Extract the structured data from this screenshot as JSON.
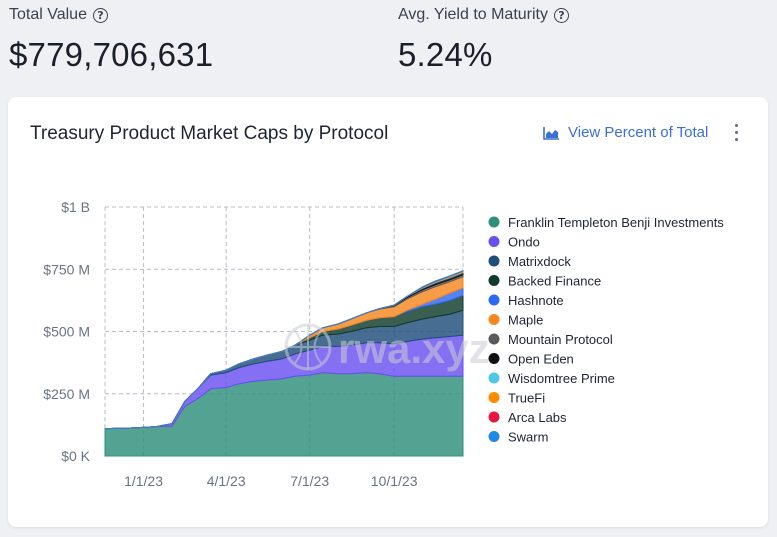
{
  "metrics": {
    "total_label": "Total Value",
    "total_value": "$779,706,631",
    "yield_label": "Avg. Yield to Maturity",
    "yield_value": "5.24%"
  },
  "card": {
    "title": "Treasury Product Market Caps by Protocol",
    "view_percent_label": "View Percent of Total",
    "watermark": "rwa.xyz"
  },
  "colors": {
    "accent": "#3b6fd4",
    "card_bg": "#ffffff",
    "page_bg": "#eef0f4"
  },
  "chart_data": {
    "type": "area",
    "stacked": true,
    "title": "Treasury Product Market Caps by Protocol",
    "x_ticks": [
      "1/1/23",
      "4/1/23",
      "7/1/23",
      "10/1/23"
    ],
    "y_ticks": [
      "$0 K",
      "$250 M",
      "$500 M",
      "$750 M",
      "$1 B"
    ],
    "ylim": [
      0,
      1000
    ],
    "y_unit": "M USD",
    "grid": true,
    "legend_position": "right",
    "x_dates": [
      "2022-11-20",
      "2022-12-15",
      "2023-01-01",
      "2023-01-15",
      "2023-02-01",
      "2023-02-15",
      "2023-03-01",
      "2023-03-15",
      "2023-04-01",
      "2023-04-15",
      "2023-05-01",
      "2023-05-15",
      "2023-06-01",
      "2023-06-15",
      "2023-07-01",
      "2023-07-15",
      "2023-08-01",
      "2023-08-15",
      "2023-09-01",
      "2023-09-15",
      "2023-10-01",
      "2023-10-15",
      "2023-11-01",
      "2023-11-15",
      "2023-12-01",
      "2023-12-15"
    ],
    "series": [
      {
        "name": "Franklin Templeton Benji Investments",
        "color": "#2e8f7a",
        "values": [
          110,
          112,
          115,
          118,
          120,
          200,
          230,
          270,
          275,
          290,
          300,
          305,
          310,
          320,
          325,
          335,
          330,
          330,
          335,
          330,
          320,
          320,
          320,
          320,
          320,
          320
        ]
      },
      {
        "name": "Ondo",
        "color": "#6a4ff0",
        "values": [
          0,
          0,
          0,
          0,
          10,
          20,
          40,
          55,
          60,
          65,
          70,
          75,
          80,
          90,
          100,
          105,
          110,
          115,
          120,
          125,
          130,
          140,
          150,
          155,
          160,
          165
        ]
      },
      {
        "name": "Matrixdock",
        "color": "#1f4e7a",
        "values": [
          0,
          0,
          0,
          0,
          0,
          0,
          0,
          5,
          10,
          15,
          20,
          25,
          30,
          35,
          40,
          45,
          50,
          55,
          60,
          65,
          70,
          75,
          80,
          85,
          90,
          100
        ]
      },
      {
        "name": "Backed Finance",
        "color": "#0f3b2a",
        "values": [
          0,
          0,
          0,
          0,
          0,
          0,
          0,
          0,
          0,
          0,
          0,
          0,
          0,
          0,
          10,
          15,
          20,
          25,
          30,
          35,
          40,
          45,
          50,
          50,
          55,
          60
        ]
      },
      {
        "name": "Hashnote",
        "color": "#2f68f0",
        "values": [
          0,
          0,
          0,
          0,
          0,
          0,
          0,
          0,
          0,
          0,
          0,
          0,
          0,
          0,
          0,
          0,
          0,
          0,
          0,
          0,
          0,
          5,
          10,
          20,
          30,
          30
        ]
      },
      {
        "name": "Maple",
        "color": "#f5871f",
        "values": [
          0,
          0,
          0,
          0,
          0,
          0,
          0,
          0,
          0,
          0,
          0,
          0,
          0,
          0,
          10,
          15,
          20,
          25,
          30,
          35,
          40,
          45,
          50,
          50,
          45,
          45
        ]
      },
      {
        "name": "Mountain Protocol",
        "color": "#5a5a5a",
        "values": [
          0,
          0,
          0,
          0,
          0,
          0,
          0,
          0,
          0,
          0,
          0,
          0,
          0,
          0,
          0,
          0,
          0,
          0,
          0,
          2,
          4,
          6,
          8,
          8,
          8,
          8
        ]
      },
      {
        "name": "Open Eden",
        "color": "#111111",
        "values": [
          0,
          0,
          0,
          0,
          0,
          0,
          0,
          0,
          0,
          0,
          0,
          0,
          0,
          0,
          0,
          0,
          0,
          0,
          0,
          0,
          2,
          4,
          6,
          8,
          8,
          8
        ]
      },
      {
        "name": "Wisdomtree Prime",
        "color": "#4fc8e8",
        "values": [
          0,
          0,
          0,
          0,
          0,
          0,
          0,
          0,
          0,
          0,
          0,
          0,
          0,
          0,
          0,
          0,
          0,
          0,
          0,
          0,
          0,
          0,
          2,
          3,
          3,
          3
        ]
      },
      {
        "name": "TrueFi",
        "color": "#ff8a00",
        "values": [
          0,
          0,
          0,
          0,
          0,
          0,
          0,
          0,
          0,
          0,
          0,
          0,
          0,
          0,
          0,
          0,
          0,
          0,
          0,
          0,
          0,
          0,
          2,
          2,
          3,
          3
        ]
      },
      {
        "name": "Arca Labs",
        "color": "#e8173f",
        "values": [
          0,
          0,
          0,
          0,
          0,
          0,
          0,
          0,
          0,
          0,
          0,
          0,
          0,
          0,
          0,
          0,
          0,
          0,
          0,
          0,
          0,
          1,
          1,
          1,
          1,
          1
        ]
      },
      {
        "name": "Swarm",
        "color": "#1e88e5",
        "values": [
          0,
          0,
          0,
          0,
          0,
          0,
          0,
          0,
          0,
          0,
          0,
          0,
          0,
          0,
          0,
          0,
          0,
          0,
          0,
          0,
          0,
          0,
          1,
          1,
          1,
          1
        ]
      }
    ]
  }
}
